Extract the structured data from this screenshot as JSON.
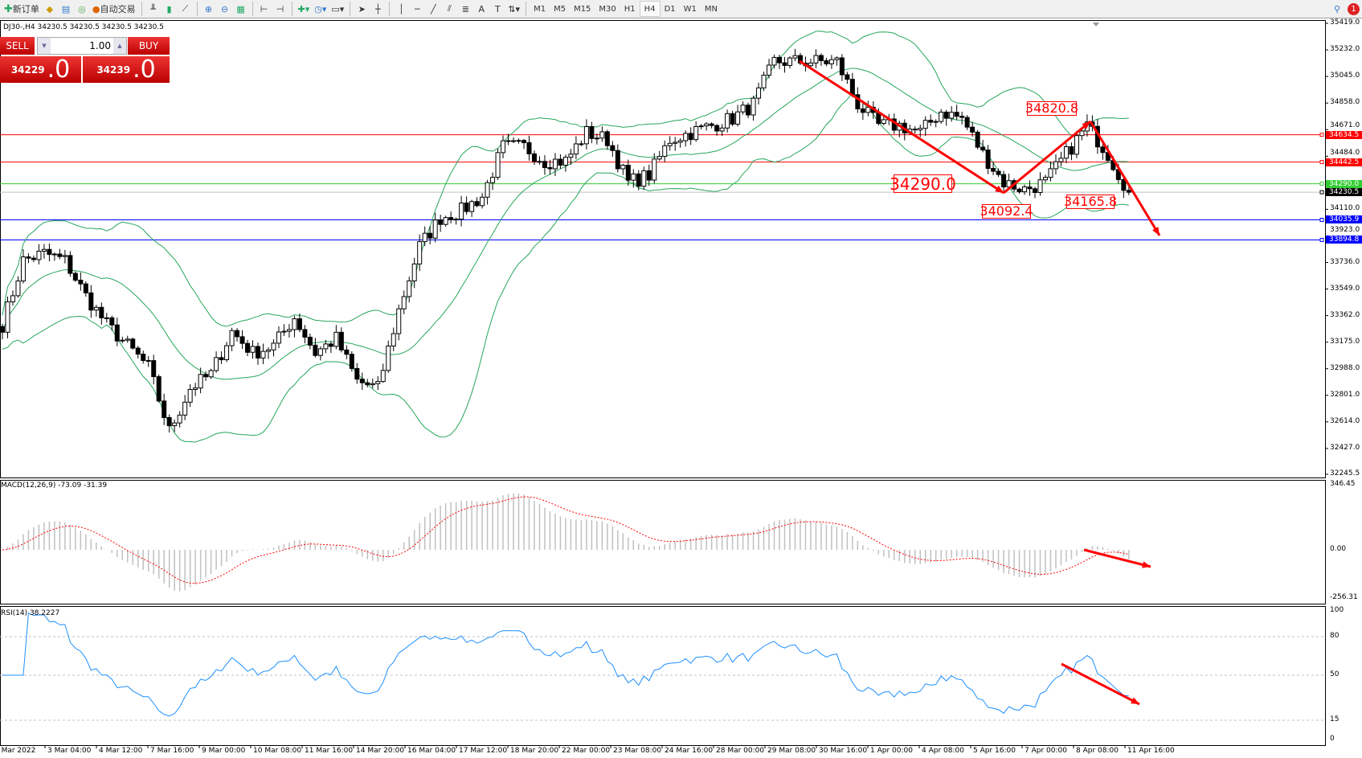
{
  "toolbar": {
    "new_order": "新订单",
    "auto_trading": "自动交易",
    "timeframes": [
      "M1",
      "M5",
      "M15",
      "M30",
      "H1",
      "H4",
      "D1",
      "W1",
      "MN"
    ],
    "active_timeframe": "H4",
    "notification_count": "1"
  },
  "chart": {
    "symbol_line": "DJ30-,H4  34230.5 34230.5 34230.5 34230.5",
    "one_click": {
      "sell_label": "SELL",
      "buy_label": "BUY",
      "lot": "1.00",
      "sell_price_main": "34229",
      "sell_price_big": ".0",
      "buy_price_main": "34239",
      "buy_price_big": ".0"
    },
    "price_axis": [
      "35419.0",
      "35232.0",
      "35045.0",
      "34858.0",
      "34671.0",
      "34484.0",
      "34110.0",
      "33923.0",
      "33736.0",
      "33549.0",
      "33362.0",
      "33175.0",
      "32988.0",
      "32801.0",
      "32614.0",
      "32427.0",
      "32245.5"
    ],
    "price_range": [
      32245.5,
      35419.0
    ],
    "hlines": [
      {
        "price": 34634.5,
        "label": "34634.5",
        "color": "#ff0000"
      },
      {
        "price": 34442.5,
        "label": "34442.5",
        "color": "#ff0000"
      },
      {
        "price": 34290.0,
        "label": "34290.0",
        "color": "#33cc33"
      },
      {
        "price": 34230.5,
        "label": "34230.5",
        "color": "#000000",
        "line_color": "#c0c0c0"
      },
      {
        "price": 34035.9,
        "label": "34035.9",
        "color": "#0000ff"
      },
      {
        "price": 33894.8,
        "label": "33894.8",
        "color": "#0000ff"
      }
    ],
    "annotations": [
      "34820.8",
      "34290.0",
      "34092.4",
      "34165.8"
    ],
    "close_path": [
      33300,
      33750,
      33800,
      33750,
      33500,
      33300,
      33150,
      33000,
      32550,
      32850,
      32950,
      33250,
      33100,
      33150,
      33350,
      33100,
      33200,
      32900,
      32850,
      33400,
      33850,
      34050,
      34100,
      34200,
      34550,
      34550,
      34450,
      34450,
      34650,
      34600,
      34300,
      34350,
      34600,
      34650,
      34700,
      34750,
      34850,
      35150,
      35150,
      35150,
      35150,
      34850,
      34700,
      34700,
      34650,
      34800,
      34750,
      34500,
      34300,
      34250,
      34300,
      34500,
      34700,
      34500,
      34230
    ],
    "bollinger_color": "#26a65b",
    "time_axis": [
      "2 Mar 2022",
      "3 Mar 04:00",
      "4 Mar 12:00",
      "7 Mar 16:00",
      "9 Mar 00:00",
      "10 Mar 08:00",
      "11 Mar 16:00",
      "14 Mar 20:00",
      "16 Mar 04:00",
      "17 Mar 12:00",
      "18 Mar 20:00",
      "22 Mar 00:00",
      "23 Mar 08:00",
      "24 Mar 16:00",
      "28 Mar 00:00",
      "29 Mar 08:00",
      "30 Mar 16:00",
      "1 Apr 00:00",
      "4 Apr 08:00",
      "5 Apr 16:00",
      "7 Apr 00:00",
      "8 Apr 08:00",
      "11 Apr 16:00"
    ]
  },
  "macd": {
    "label": "MACD(12,26,9) -73.09 -31.39",
    "axis": [
      "346.45",
      "0.00",
      "-256.31"
    ],
    "range": [
      -256.31,
      346.45
    ]
  },
  "rsi": {
    "label": "RSI(14) 38.2227",
    "axis": [
      "100",
      "80",
      "50",
      "15",
      "0"
    ],
    "levels": [
      80,
      50,
      15
    ]
  }
}
